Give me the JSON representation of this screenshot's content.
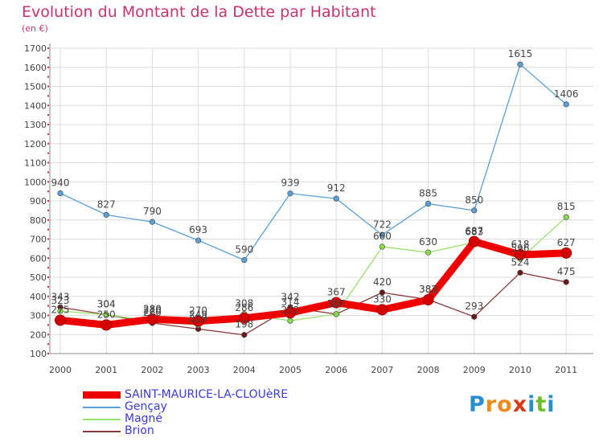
{
  "header": {
    "title": "Evolution du Montant de la Dette par Habitant",
    "unit": "(en €)"
  },
  "logo": {
    "text": "Proxiti",
    "letters": [
      "P",
      "r",
      "o",
      "x",
      "i",
      "t",
      "i"
    ],
    "colors": [
      "#2a8fd0",
      "#f08a1c",
      "#f08a1c",
      "#d63a1a",
      "#2a8fd0",
      "#6fbf2a",
      "#2a8fd0"
    ]
  },
  "chart_data": {
    "type": "line",
    "title": "Evolution du Montant de la Dette par Habitant",
    "ylabel": "(en €)",
    "xlabel": "",
    "x": [
      "2000",
      "2001",
      "2002",
      "2003",
      "2004",
      "2005",
      "2006",
      "2007",
      "2008",
      "2009",
      "2010",
      "2011"
    ],
    "ylim": [
      100,
      1700
    ],
    "yticks": [
      100,
      200,
      300,
      400,
      500,
      600,
      700,
      800,
      900,
      1000,
      1100,
      1200,
      1300,
      1400,
      1500,
      1600,
      1700
    ],
    "grid": true,
    "legend": "bottom-left",
    "series": [
      {
        "name": "SAINT-MAURICE-LA-CLOUèRE",
        "color": "#ee0000",
        "marker": "#d40000",
        "thick": true,
        "values": [
          275,
          250,
          280,
          270,
          286,
          314,
          367,
          330,
          382,
          687,
          618,
          627
        ]
      },
      {
        "name": "Gençay",
        "color": "#5a9fd6",
        "marker": "#5a9fd6",
        "thick": false,
        "values": [
          940,
          827,
          790,
          693,
          590,
          939,
          912,
          722,
          885,
          850,
          1615,
          1406
        ]
      },
      {
        "name": "Magné",
        "color": "#99e06a",
        "marker": "#8ad84e",
        "thick": false,
        "values": [
          323,
          304,
          270,
          249,
          308,
          272,
          307,
          660,
          630,
          683,
          596,
          815
        ]
      },
      {
        "name": "Brion",
        "color": "#8a3a3a",
        "marker": "#6a1818",
        "thick": false,
        "values": [
          343,
          304,
          260,
          229,
          198,
          342,
          307,
          420,
          383,
          293,
          524,
          475
        ]
      }
    ]
  }
}
